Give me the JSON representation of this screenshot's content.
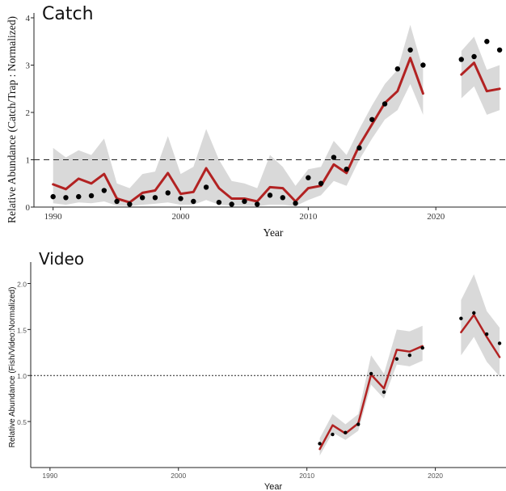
{
  "chart_data": [
    {
      "type": "line",
      "title": "Catch",
      "xlabel": "Year",
      "ylabel": "Relative Abundance (Catch/Trap : Normalized)",
      "xlim": [
        1988.5,
        2025.5
      ],
      "ylim": [
        0,
        4
      ],
      "xticks": [
        1990,
        2000,
        2010,
        2020
      ],
      "yticks": [
        0,
        1,
        2,
        3,
        4
      ],
      "grid": false,
      "reference_line": 1,
      "segments": [
        {
          "x": [
            1990,
            1991,
            1992,
            1993,
            1994,
            1995,
            1996,
            1997,
            1998,
            1999,
            2000,
            2001,
            2002,
            2003,
            2004,
            2005,
            2006,
            2007,
            2008,
            2009,
            2010,
            2011,
            2012,
            2013,
            2014,
            2015,
            2016,
            2017,
            2018,
            2019
          ],
          "fit": [
            0.48,
            0.38,
            0.6,
            0.5,
            0.7,
            0.18,
            0.1,
            0.3,
            0.35,
            0.72,
            0.28,
            0.32,
            0.82,
            0.4,
            0.18,
            0.18,
            0.12,
            0.42,
            0.4,
            0.12,
            0.4,
            0.45,
            0.9,
            0.72,
            1.3,
            1.75,
            2.2,
            2.45,
            3.15,
            2.4
          ],
          "lower": [
            0.08,
            0.05,
            0.1,
            0.08,
            0.12,
            0.03,
            0.02,
            0.05,
            0.07,
            0.1,
            0.05,
            0.05,
            0.15,
            0.05,
            0.03,
            0.03,
            0.02,
            0.05,
            0.05,
            0.02,
            0.15,
            0.25,
            0.55,
            0.45,
            1.0,
            1.45,
            1.85,
            2.05,
            2.6,
            1.95
          ],
          "upper": [
            1.25,
            1.05,
            1.2,
            1.1,
            1.45,
            0.5,
            0.4,
            0.7,
            0.75,
            1.5,
            0.7,
            0.85,
            1.65,
            1.0,
            0.55,
            0.5,
            0.4,
            1.1,
            0.85,
            0.45,
            0.8,
            0.85,
            1.4,
            1.1,
            1.65,
            2.15,
            2.6,
            2.9,
            3.85,
            2.9
          ]
        },
        {
          "x": [
            2022,
            2023,
            2024,
            2025
          ],
          "fit": [
            2.8,
            3.05,
            2.45,
            2.5
          ],
          "lower": [
            2.3,
            2.55,
            1.95,
            2.05
          ],
          "upper": [
            3.3,
            3.6,
            2.9,
            3.0
          ]
        }
      ],
      "points": {
        "x": [
          1990,
          1991,
          1992,
          1993,
          1994,
          1995,
          1996,
          1997,
          1998,
          1999,
          2000,
          2001,
          2002,
          2003,
          2004,
          2005,
          2006,
          2007,
          2008,
          2009,
          2010,
          2011,
          2012,
          2013,
          2014,
          2015,
          2016,
          2017,
          2018,
          2019,
          2022,
          2023,
          2024,
          2025
        ],
        "y": [
          0.22,
          0.2,
          0.22,
          0.24,
          0.35,
          0.12,
          0.06,
          0.2,
          0.2,
          0.3,
          0.18,
          0.12,
          0.42,
          0.1,
          0.06,
          0.12,
          0.06,
          0.25,
          0.2,
          0.08,
          0.62,
          0.5,
          1.05,
          0.8,
          1.25,
          1.85,
          2.18,
          2.92,
          3.32,
          3.0,
          3.12,
          3.18,
          3.5,
          3.32
        ]
      }
    },
    {
      "type": "line",
      "title": "Video",
      "xlabel": "Year",
      "ylabel": "Relative Abundance (Fish/Video:Normalized)",
      "xlim": [
        1988.5,
        2025.5
      ],
      "ylim": [
        0,
        2.18
      ],
      "xticks": [
        1990,
        2000,
        2010,
        2020
      ],
      "yticks": [
        0.5,
        1.0,
        1.5,
        2.0
      ],
      "ytick_labels": [
        "0.5",
        "1.0",
        "1.5",
        "2.0"
      ],
      "grid": false,
      "reference_line": 1,
      "segments": [
        {
          "x": [
            2011,
            2012,
            2013,
            2014,
            2015,
            2016,
            2017,
            2018,
            2019
          ],
          "fit": [
            0.2,
            0.46,
            0.37,
            0.48,
            1.01,
            0.86,
            1.28,
            1.26,
            1.32
          ],
          "lower": [
            0.13,
            0.38,
            0.3,
            0.4,
            0.9,
            0.75,
            1.12,
            1.1,
            1.16
          ],
          "upper": [
            0.32,
            0.58,
            0.47,
            0.58,
            1.22,
            1.02,
            1.5,
            1.48,
            1.54
          ]
        },
        {
          "x": [
            2022,
            2023,
            2024,
            2025
          ],
          "fit": [
            1.47,
            1.66,
            1.42,
            1.2
          ],
          "lower": [
            1.22,
            1.42,
            1.15,
            0.99
          ],
          "upper": [
            1.82,
            2.1,
            1.7,
            1.52
          ]
        }
      ],
      "points": {
        "x": [
          2011,
          2012,
          2013,
          2014,
          2015,
          2016,
          2017,
          2018,
          2019,
          2022,
          2023,
          2024,
          2025
        ],
        "y": [
          0.26,
          0.36,
          0.38,
          0.47,
          1.02,
          0.82,
          1.18,
          1.22,
          1.3,
          1.62,
          1.68,
          1.45,
          1.35
        ]
      }
    }
  ]
}
